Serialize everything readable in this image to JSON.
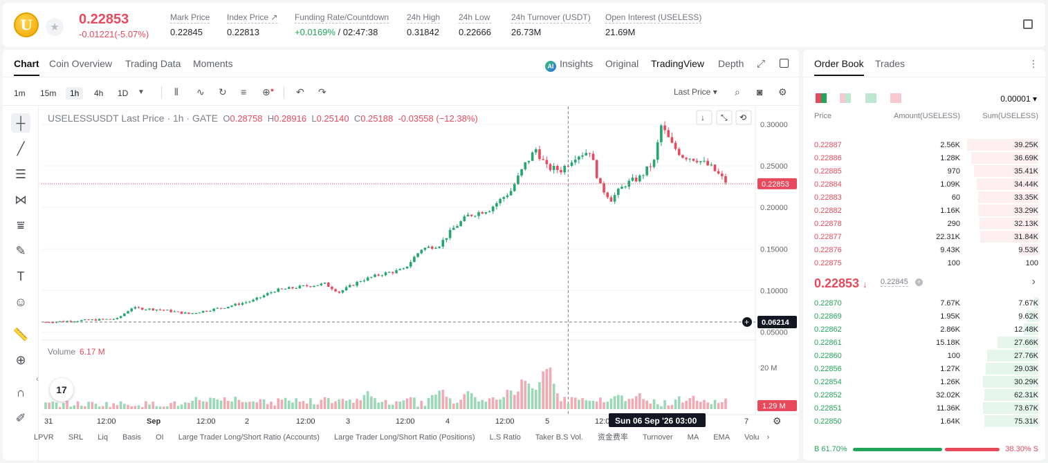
{
  "header": {
    "coin_letter": "U",
    "last_price": "0.22853",
    "change": "-0.01221(-5.07%)",
    "stats": [
      {
        "label": "Mark Price",
        "value": "0.22845"
      },
      {
        "label": "Index Price ↗",
        "value": "0.22813"
      },
      {
        "label": "Funding Rate/Countdown",
        "value_green": "+0.0169%",
        "value": " / 02:47:38"
      },
      {
        "label": "24h High",
        "value": "0.31842"
      },
      {
        "label": "24h Low",
        "value": "0.22666"
      },
      {
        "label": "24h Turnover (USDT)",
        "value": "26.73M"
      },
      {
        "label": "Open Interest (USELESS)",
        "value": "21.69M"
      }
    ]
  },
  "chart_tabs": [
    "Chart",
    "Coin Overview",
    "Trading Data",
    "Moments"
  ],
  "view_tabs": {
    "insights": "Insights",
    "ai": "AI",
    "original": "Original",
    "tradingview": "TradingView",
    "depth": "Depth"
  },
  "intervals": [
    "1m",
    "15m",
    "1h",
    "4h",
    "1D"
  ],
  "price_type": "Last Price",
  "legend": {
    "name": "USELESSUSDT Last Price · 1h · GATE",
    "o_label": "O",
    "o": "0.28758",
    "h_label": "H",
    "h": "0.28916",
    "l_label": "L",
    "l": "0.25140",
    "c_label": "C",
    "c": "0.25188",
    "chg": "-0.03558 (−12.38%)"
  },
  "volume_legend": {
    "label": "Volume",
    "value": "6.17 M"
  },
  "bottom_tools": [
    "LPVR",
    "SRL",
    "Liq",
    "Basis",
    "OI",
    "Large Trader Long/Short Ratio (Accounts)",
    "Large Trader Long/Short Ratio (Positions)",
    "L.S Ratio",
    "Taker B.S Vol.",
    "资金费率",
    "Turnover",
    "MA",
    "EMA",
    "Volu"
  ],
  "tv_logo": "17",
  "chart_data": {
    "type": "candlestick",
    "title": "USELESSUSDT Last Price · 1h · GATE",
    "y_ticks": [
      "0.30000",
      "0.25000",
      "0.20000",
      "0.15000",
      "0.10000",
      "0.05000"
    ],
    "ylim": [
      0.0405,
      0.3215
    ],
    "volume_ticks": [
      "20 M"
    ],
    "x_ticks": [
      "31",
      "12:00",
      "Sep",
      "12:00",
      "2",
      "12:00",
      "3",
      "12:00",
      "4",
      "12:00",
      "5",
      "12:00",
      "6",
      "7"
    ],
    "last_price_label": "0.22853",
    "last_price": 0.22853,
    "crosshair_price_label": "0.06214",
    "crosshair_price": 0.06214,
    "crosshair_date_label": "Sun 06 Sep '26   03:00",
    "volume_last_label": "1.29 M",
    "candle_count": 160,
    "anchors": [
      [
        0,
        0.062
      ],
      [
        10,
        0.064
      ],
      [
        20,
        0.066
      ],
      [
        24,
        0.079
      ],
      [
        32,
        0.077
      ],
      [
        40,
        0.072
      ],
      [
        50,
        0.08
      ],
      [
        58,
        0.088
      ],
      [
        64,
        0.1
      ],
      [
        72,
        0.105
      ],
      [
        78,
        0.108
      ],
      [
        82,
        0.098
      ],
      [
        88,
        0.112
      ],
      [
        94,
        0.12
      ],
      [
        100,
        0.125
      ],
      [
        105,
        0.15
      ],
      [
        110,
        0.155
      ],
      [
        114,
        0.175
      ],
      [
        118,
        0.19
      ],
      [
        124,
        0.198
      ],
      [
        130,
        0.22
      ],
      [
        134,
        0.252
      ],
      [
        137,
        0.27
      ],
      [
        140,
        0.248
      ],
      [
        144,
        0.245
      ],
      [
        148,
        0.262
      ],
      [
        152,
        0.268
      ],
      [
        155,
        0.225
      ],
      [
        158,
        0.21
      ],
      [
        162,
        0.228
      ],
      [
        166,
        0.236
      ],
      [
        170,
        0.255
      ],
      [
        172,
        0.298
      ],
      [
        175,
        0.275
      ],
      [
        178,
        0.262
      ],
      [
        182,
        0.258
      ],
      [
        186,
        0.248
      ],
      [
        190,
        0.231
      ]
    ],
    "volume_peaks": [
      [
        140,
        27
      ],
      [
        138,
        13
      ],
      [
        134,
        18
      ],
      [
        130,
        12
      ],
      [
        118,
        10
      ],
      [
        110,
        12
      ],
      [
        90,
        9
      ],
      [
        50,
        6
      ],
      [
        46,
        6
      ],
      [
        160,
        9
      ],
      [
        166,
        8
      ]
    ]
  },
  "order_book": {
    "tabs": [
      "Order Book",
      "Trades"
    ],
    "tick": "0.00001",
    "headers": {
      "price": "Price",
      "amount": "Amount(USELESS)",
      "sum": "Sum(USELESS)"
    },
    "asks": [
      {
        "price": "0.22887",
        "amount": "2.56K",
        "sum": "39.25K",
        "depth": 0.54,
        "own": 0.12
      },
      {
        "price": "0.22886",
        "amount": "1.28K",
        "sum": "36.69K",
        "depth": 0.51,
        "own": 0.08
      },
      {
        "price": "0.22885",
        "amount": "970",
        "sum": "35.41K",
        "depth": 0.49,
        "own": 0.06
      },
      {
        "price": "0.22884",
        "amount": "1.09K",
        "sum": "34.44K",
        "depth": 0.47,
        "own": 0.07
      },
      {
        "price": "0.22883",
        "amount": "60",
        "sum": "33.35K",
        "depth": 0.46,
        "own": 0.01
      },
      {
        "price": "0.22882",
        "amount": "1.16K",
        "sum": "33.29K",
        "depth": 0.46,
        "own": 0.07
      },
      {
        "price": "0.22878",
        "amount": "290",
        "sum": "32.13K",
        "depth": 0.45,
        "own": 0.02
      },
      {
        "price": "0.22877",
        "amount": "22.31K",
        "sum": "31.84K",
        "depth": 0.44,
        "own": 0.35
      },
      {
        "price": "0.22876",
        "amount": "9.43K",
        "sum": "9.53K",
        "depth": 0.13,
        "own": 0.13
      },
      {
        "price": "0.22875",
        "amount": "100",
        "sum": "100",
        "depth": 0.0,
        "own": 0.0
      }
    ],
    "mid_price": "0.22853",
    "mid_arrow": "↓",
    "mid_mark": "0.22845",
    "bids": [
      {
        "price": "0.22870",
        "amount": "7.67K",
        "sum": "7.67K",
        "depth": 0.03
      },
      {
        "price": "0.22869",
        "amount": "1.95K",
        "sum": "9.62K",
        "depth": 0.09
      },
      {
        "price": "0.22862",
        "amount": "2.86K",
        "sum": "12.48K",
        "depth": 0.11
      },
      {
        "price": "0.22861",
        "amount": "15.18K",
        "sum": "27.66K",
        "depth": 0.31
      },
      {
        "price": "0.22860",
        "amount": "100",
        "sum": "27.76K",
        "depth": 0.39
      },
      {
        "price": "0.22856",
        "amount": "1.27K",
        "sum": "29.03K",
        "depth": 0.4
      },
      {
        "price": "0.22854",
        "amount": "1.26K",
        "sum": "30.29K",
        "depth": 0.42
      },
      {
        "price": "0.22852",
        "amount": "32.02K",
        "sum": "62.31K",
        "depth": 0.41
      },
      {
        "price": "0.22851",
        "amount": "11.36K",
        "sum": "73.67K",
        "depth": 0.42
      },
      {
        "price": "0.22850",
        "amount": "1.64K",
        "sum": "75.31K",
        "depth": 0.41
      }
    ],
    "buy_label": "B 61.70%",
    "sell_label": "38.30% S",
    "buy_ratio": 0.617
  }
}
